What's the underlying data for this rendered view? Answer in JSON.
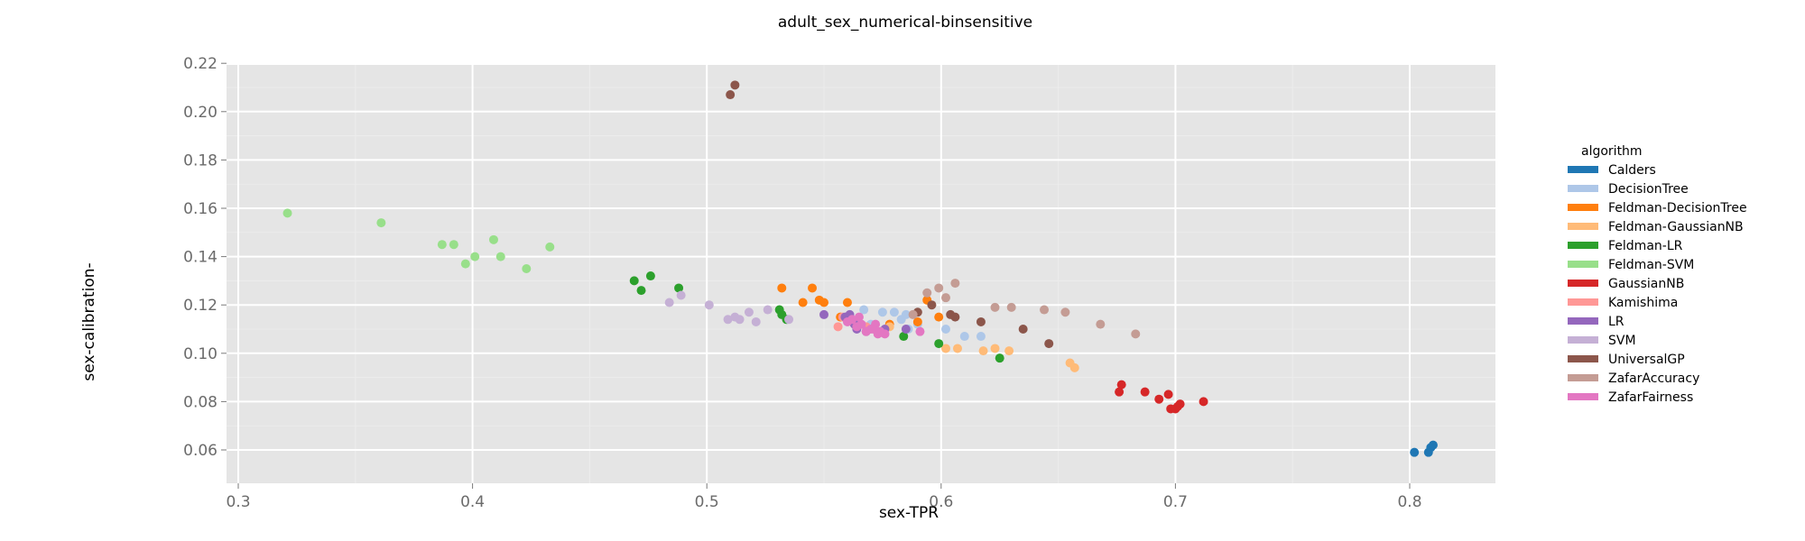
{
  "chart_data": {
    "type": "scatter",
    "title": "adult_sex_numerical-binsensitive",
    "xlabel": "sex-TPR",
    "ylabel": "sex-calibration-",
    "xlim": [
      0.3,
      0.84
    ],
    "ylim": [
      0.05,
      0.22
    ],
    "xticks": [
      0.3,
      0.4,
      0.5,
      0.6,
      0.7,
      0.8
    ],
    "yticks": [
      0.06,
      0.08,
      0.1,
      0.12,
      0.14,
      0.16,
      0.18,
      0.2,
      0.22
    ],
    "grid": true,
    "legend_title": "algorithm",
    "legend_position": "right",
    "series": [
      {
        "name": "Calders",
        "color": "#1f77b4",
        "points": [
          [
            0.802,
            0.059
          ],
          [
            0.808,
            0.059
          ],
          [
            0.809,
            0.061
          ],
          [
            0.81,
            0.062
          ]
        ]
      },
      {
        "name": "DecisionTree",
        "color": "#aec7e8",
        "points": [
          [
            0.567,
            0.118
          ],
          [
            0.575,
            0.117
          ],
          [
            0.58,
            0.117
          ],
          [
            0.583,
            0.114
          ],
          [
            0.585,
            0.116
          ],
          [
            0.586,
            0.11
          ],
          [
            0.602,
            0.11
          ],
          [
            0.61,
            0.107
          ],
          [
            0.617,
            0.107
          ],
          [
            0.57,
            0.112
          ],
          [
            0.59,
            0.112
          ]
        ]
      },
      {
        "name": "Feldman-DecisionTree",
        "color": "#ff7f0e",
        "points": [
          [
            0.532,
            0.127
          ],
          [
            0.545,
            0.127
          ],
          [
            0.541,
            0.121
          ],
          [
            0.548,
            0.122
          ],
          [
            0.55,
            0.121
          ],
          [
            0.56,
            0.121
          ],
          [
            0.557,
            0.115
          ],
          [
            0.594,
            0.122
          ],
          [
            0.599,
            0.115
          ],
          [
            0.59,
            0.113
          ],
          [
            0.578,
            0.112
          ]
        ]
      },
      {
        "name": "Feldman-GaussianNB",
        "color": "#ffbb78",
        "points": [
          [
            0.602,
            0.102
          ],
          [
            0.607,
            0.102
          ],
          [
            0.618,
            0.101
          ],
          [
            0.623,
            0.102
          ],
          [
            0.629,
            0.101
          ],
          [
            0.655,
            0.096
          ],
          [
            0.657,
            0.094
          ],
          [
            0.578,
            0.111
          ]
        ]
      },
      {
        "name": "Feldman-LR",
        "color": "#2ca02c",
        "points": [
          [
            0.469,
            0.13
          ],
          [
            0.476,
            0.132
          ],
          [
            0.472,
            0.126
          ],
          [
            0.488,
            0.127
          ],
          [
            0.531,
            0.118
          ],
          [
            0.532,
            0.116
          ],
          [
            0.599,
            0.104
          ],
          [
            0.584,
            0.107
          ],
          [
            0.625,
            0.098
          ],
          [
            0.534,
            0.114
          ]
        ]
      },
      {
        "name": "Feldman-SVM",
        "color": "#98df8a",
        "points": [
          [
            0.321,
            0.158
          ],
          [
            0.361,
            0.154
          ],
          [
            0.387,
            0.145
          ],
          [
            0.392,
            0.145
          ],
          [
            0.409,
            0.147
          ],
          [
            0.397,
            0.137
          ],
          [
            0.401,
            0.14
          ],
          [
            0.412,
            0.14
          ],
          [
            0.423,
            0.135
          ],
          [
            0.433,
            0.144
          ]
        ]
      },
      {
        "name": "GaussianNB",
        "color": "#d62728",
        "points": [
          [
            0.677,
            0.087
          ],
          [
            0.676,
            0.084
          ],
          [
            0.687,
            0.084
          ],
          [
            0.693,
            0.081
          ],
          [
            0.697,
            0.083
          ],
          [
            0.698,
            0.077
          ],
          [
            0.7,
            0.077
          ],
          [
            0.701,
            0.078
          ],
          [
            0.702,
            0.079
          ],
          [
            0.712,
            0.08
          ]
        ]
      },
      {
        "name": "Kamishima",
        "color": "#ff9896",
        "points": [
          [
            0.556,
            0.111
          ],
          [
            0.558,
            0.115
          ],
          [
            0.563,
            0.112
          ],
          [
            0.568,
            0.111
          ]
        ]
      },
      {
        "name": "LR",
        "color": "#9467bd",
        "points": [
          [
            0.55,
            0.116
          ],
          [
            0.559,
            0.115
          ],
          [
            0.561,
            0.116
          ],
          [
            0.563,
            0.112
          ],
          [
            0.564,
            0.11
          ],
          [
            0.568,
            0.109
          ],
          [
            0.576,
            0.11
          ],
          [
            0.585,
            0.11
          ]
        ]
      },
      {
        "name": "SVM",
        "color": "#c5b0d5",
        "points": [
          [
            0.484,
            0.121
          ],
          [
            0.489,
            0.124
          ],
          [
            0.501,
            0.12
          ],
          [
            0.509,
            0.114
          ],
          [
            0.512,
            0.115
          ],
          [
            0.514,
            0.114
          ],
          [
            0.518,
            0.117
          ],
          [
            0.521,
            0.113
          ],
          [
            0.526,
            0.118
          ],
          [
            0.535,
            0.114
          ]
        ]
      },
      {
        "name": "UniversalGP",
        "color": "#8c564b",
        "points": [
          [
            0.51,
            0.207
          ],
          [
            0.512,
            0.211
          ],
          [
            0.59,
            0.117
          ],
          [
            0.596,
            0.12
          ],
          [
            0.604,
            0.116
          ],
          [
            0.606,
            0.115
          ],
          [
            0.617,
            0.113
          ],
          [
            0.635,
            0.11
          ],
          [
            0.646,
            0.104
          ]
        ]
      },
      {
        "name": "ZafarAccuracy",
        "color": "#c49c94",
        "points": [
          [
            0.594,
            0.125
          ],
          [
            0.599,
            0.127
          ],
          [
            0.606,
            0.129
          ],
          [
            0.602,
            0.123
          ],
          [
            0.623,
            0.119
          ],
          [
            0.63,
            0.119
          ],
          [
            0.644,
            0.118
          ],
          [
            0.653,
            0.117
          ],
          [
            0.668,
            0.112
          ],
          [
            0.683,
            0.108
          ],
          [
            0.588,
            0.116
          ]
        ]
      },
      {
        "name": "ZafarFairness",
        "color": "#e377c2",
        "points": [
          [
            0.56,
            0.113
          ],
          [
            0.564,
            0.111
          ],
          [
            0.566,
            0.112
          ],
          [
            0.568,
            0.109
          ],
          [
            0.57,
            0.11
          ],
          [
            0.572,
            0.112
          ],
          [
            0.573,
            0.108
          ],
          [
            0.576,
            0.108
          ],
          [
            0.591,
            0.109
          ],
          [
            0.562,
            0.114
          ],
          [
            0.565,
            0.115
          ],
          [
            0.571,
            0.11
          ],
          [
            0.574,
            0.109
          ]
        ]
      }
    ]
  }
}
